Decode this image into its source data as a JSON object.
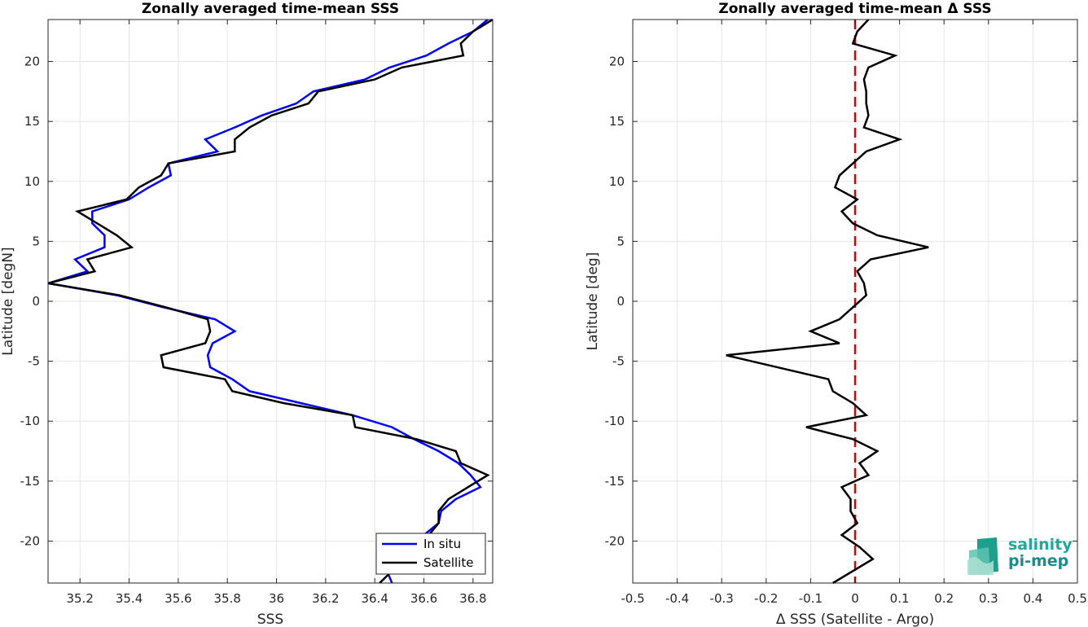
{
  "chart_data": [
    {
      "type": "line",
      "title": "Zonally averaged time-mean SSS",
      "xlabel": "SSS",
      "ylabel": "Latitude [degN]",
      "xlim": [
        35.07,
        36.88
      ],
      "ylim": [
        -23.5,
        23.5
      ],
      "xticks": [
        35.2,
        35.4,
        35.6,
        35.8,
        36,
        36.2,
        36.4,
        36.6,
        36.8
      ],
      "xtick_labels": [
        "35.2",
        "35.4",
        "35.6",
        "35.8",
        "36",
        "36.2",
        "36.4",
        "36.6",
        "36.8"
      ],
      "yticks": [
        -20,
        -15,
        -10,
        -5,
        0,
        5,
        10,
        15,
        20
      ],
      "ytick_labels": [
        "-20",
        "-15",
        "-10",
        "-5",
        "0",
        "5",
        "10",
        "15",
        "20"
      ],
      "grid": true,
      "legend_position": "bottom-right",
      "series": [
        {
          "name": "In situ",
          "color": "#0000ff",
          "points": [
            [
              36.47,
              -23.5
            ],
            [
              36.45,
              -22.5
            ],
            [
              36.51,
              -21.5
            ],
            [
              36.57,
              -20.5
            ],
            [
              36.6,
              -19.5
            ],
            [
              36.66,
              -18.5
            ],
            [
              36.67,
              -17.5
            ],
            [
              36.73,
              -16.5
            ],
            [
              36.83,
              -15.5
            ],
            [
              36.79,
              -14.5
            ],
            [
              36.74,
              -13.5
            ],
            [
              36.66,
              -12.5
            ],
            [
              36.56,
              -11.5
            ],
            [
              36.47,
              -10.5
            ],
            [
              36.31,
              -9.5
            ],
            [
              36.1,
              -8.5
            ],
            [
              35.89,
              -7.5
            ],
            [
              35.82,
              -6.5
            ],
            [
              35.73,
              -5.5
            ],
            [
              35.72,
              -4.5
            ],
            [
              35.74,
              -3.5
            ],
            [
              35.83,
              -2.5
            ],
            [
              35.75,
              -1.5
            ],
            [
              35.54,
              -0.5
            ],
            [
              35.35,
              0.5
            ],
            [
              35.07,
              1.5
            ],
            [
              35.23,
              2.5
            ],
            [
              35.18,
              3.5
            ],
            [
              35.3,
              4.5
            ],
            [
              35.3,
              5.5
            ],
            [
              35.25,
              6.5
            ],
            [
              35.25,
              7.5
            ],
            [
              35.4,
              8.5
            ],
            [
              35.48,
              9.5
            ],
            [
              35.57,
              10.5
            ],
            [
              35.56,
              11.5
            ],
            [
              35.76,
              12.5
            ],
            [
              35.71,
              13.5
            ],
            [
              35.83,
              14.5
            ],
            [
              35.94,
              15.5
            ],
            [
              36.08,
              16.5
            ],
            [
              36.15,
              17.5
            ],
            [
              36.36,
              18.5
            ],
            [
              36.46,
              19.5
            ],
            [
              36.61,
              20.5
            ],
            [
              36.7,
              21.5
            ],
            [
              36.8,
              22.5
            ],
            [
              36.86,
              23.5
            ]
          ]
        },
        {
          "name": "Satellite",
          "color": "#000000",
          "points": [
            [
              36.42,
              -23.5
            ],
            [
              36.47,
              -22.5
            ],
            [
              36.53,
              -21.5
            ],
            [
              36.58,
              -20.5
            ],
            [
              36.62,
              -19.5
            ],
            [
              36.66,
              -18.5
            ],
            [
              36.66,
              -17.5
            ],
            [
              36.7,
              -16.5
            ],
            [
              36.78,
              -15.5
            ],
            [
              36.86,
              -14.5
            ],
            [
              36.75,
              -13.5
            ],
            [
              36.73,
              -12.5
            ],
            [
              36.57,
              -11.5
            ],
            [
              36.32,
              -10.5
            ],
            [
              36.31,
              -9.5
            ],
            [
              36.03,
              -8.5
            ],
            [
              35.82,
              -7.5
            ],
            [
              35.79,
              -6.5
            ],
            [
              35.54,
              -5.5
            ],
            [
              35.53,
              -4.5
            ],
            [
              35.71,
              -3.5
            ],
            [
              35.73,
              -2.5
            ],
            [
              35.72,
              -1.5
            ],
            [
              35.55,
              -0.5
            ],
            [
              35.36,
              0.5
            ],
            [
              35.07,
              1.5
            ],
            [
              35.26,
              2.5
            ],
            [
              35.23,
              3.5
            ],
            [
              35.41,
              4.5
            ],
            [
              35.35,
              5.5
            ],
            [
              35.27,
              6.5
            ],
            [
              35.19,
              7.5
            ],
            [
              35.39,
              8.5
            ],
            [
              35.44,
              9.5
            ],
            [
              35.53,
              10.5
            ],
            [
              35.56,
              11.5
            ],
            [
              35.83,
              12.5
            ],
            [
              35.83,
              13.5
            ],
            [
              35.89,
              14.5
            ],
            [
              35.98,
              15.5
            ],
            [
              36.13,
              16.5
            ],
            [
              36.17,
              17.5
            ],
            [
              36.4,
              18.5
            ],
            [
              36.51,
              19.5
            ],
            [
              36.76,
              20.5
            ],
            [
              36.75,
              21.5
            ],
            [
              36.8,
              22.5
            ],
            [
              36.88,
              23.5
            ]
          ]
        }
      ]
    },
    {
      "type": "line",
      "title": "Zonally averaged time-mean Δ SSS",
      "xlabel": "Δ SSS (Satellite - Argo)",
      "ylabel": "Latitude [deg]",
      "xlim": [
        -0.5,
        0.5
      ],
      "ylim": [
        -23.5,
        23.5
      ],
      "xticks": [
        -0.5,
        -0.4,
        -0.3,
        -0.2,
        -0.1,
        0,
        0.1,
        0.2,
        0.3,
        0.4,
        0.5
      ],
      "xtick_labels": [
        "-0.5",
        "-0.4",
        "-0.3",
        "-0.2",
        "-0.1",
        "0",
        "0.1",
        "0.2",
        "0.3",
        "0.4",
        "0.5"
      ],
      "yticks": [
        -20,
        -15,
        -10,
        -5,
        0,
        5,
        10,
        15,
        20
      ],
      "ytick_labels": [
        "-20",
        "-15",
        "-10",
        "-5",
        "0",
        "5",
        "10",
        "15",
        "20"
      ],
      "grid": true,
      "zero_line": {
        "x": 0,
        "color": "#dd0000",
        "style": "dashed"
      },
      "series": [
        {
          "color": "#000000",
          "points": [
            [
              -0.05,
              -23.5
            ],
            [
              0.04,
              -21.5
            ],
            [
              0.01,
              -20.5
            ],
            [
              -0.03,
              -19.5
            ],
            [
              0.005,
              -18.5
            ],
            [
              -0.01,
              -17.5
            ],
            [
              -0.01,
              -16.5
            ],
            [
              -0.03,
              -15.5
            ],
            [
              0.03,
              -14.5
            ],
            [
              0.01,
              -13.5
            ],
            [
              0.05,
              -12.5
            ],
            [
              -0.005,
              -11.5
            ],
            [
              -0.11,
              -10.5
            ],
            [
              0.025,
              -9.5
            ],
            [
              -0.005,
              -8.5
            ],
            [
              -0.05,
              -7.5
            ],
            [
              -0.06,
              -6.5
            ],
            [
              -0.29,
              -4.5
            ],
            [
              -0.035,
              -3.5
            ],
            [
              -0.1,
              -2.5
            ],
            [
              -0.035,
              -1.5
            ],
            [
              -0.005,
              -0.5
            ],
            [
              0.025,
              0.5
            ],
            [
              0.02,
              1.5
            ],
            [
              0.005,
              2.5
            ],
            [
              0.035,
              3.5
            ],
            [
              0.165,
              4.5
            ],
            [
              0.05,
              5.5
            ],
            [
              -0.005,
              6.5
            ],
            [
              -0.03,
              7.5
            ],
            [
              0.005,
              8.5
            ],
            [
              -0.045,
              9.5
            ],
            [
              -0.035,
              10.5
            ],
            [
              0.025,
              12.5
            ],
            [
              0.1,
              13.5
            ],
            [
              0.02,
              14.5
            ],
            [
              0.03,
              15.5
            ],
            [
              0.025,
              16.5
            ],
            [
              0.025,
              17.5
            ],
            [
              0.02,
              18.5
            ],
            [
              0.03,
              19.5
            ],
            [
              0.09,
              20.5
            ],
            [
              -0.005,
              21.5
            ],
            [
              0.005,
              22.5
            ],
            [
              0.03,
              23.5
            ]
          ]
        }
      ]
    }
  ],
  "legend": {
    "items": [
      {
        "label": "In situ",
        "color": "#0000ff"
      },
      {
        "label": "Satellite",
        "color": "#000000"
      }
    ]
  },
  "logo": {
    "line1": "salinity",
    "line2": "pi-mep"
  }
}
